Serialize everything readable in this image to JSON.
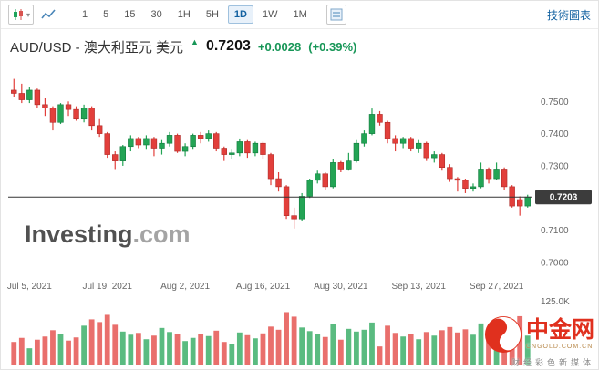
{
  "toolbar": {
    "chart_type_icon": "candlestick-icon",
    "line_icon": "line-chart-icon",
    "panel_icon": "indicators-icon",
    "timeframes": [
      "1",
      "5",
      "15",
      "30",
      "1H",
      "5H",
      "1D",
      "1W",
      "1M"
    ],
    "active_timeframe": "1D",
    "link_label": "技術圖表"
  },
  "header": {
    "title": "AUD/USD - 澳大利亞元 美元",
    "direction_icon": "up-arrow-icon",
    "price": "0.7203",
    "change": "+0.0028",
    "change_percent": "(+0.39%)"
  },
  "watermark": {
    "brand": "Investing",
    "suffix": ".com"
  },
  "logo": {
    "name": "中金网",
    "domain": "CNGOLD.COM.CN",
    "tagline": "财经彩色新媒体"
  },
  "colors": {
    "up": "#23A455",
    "up_border": "#117A3D",
    "down": "#E23F3B",
    "down_border": "#AD2B28",
    "accent_blue": "#1261A0",
    "price_line": "#333333",
    "badge_bg": "#3c3c3c",
    "badge_text": "#ffffff",
    "axis_text": "#666666",
    "logo_red": "#E0301E"
  },
  "chart_data": {
    "type": "candlestick",
    "title": "AUD/USD Daily",
    "ylim": [
      0.696,
      0.76
    ],
    "y_ticks": [
      0.75,
      0.74,
      0.73,
      0.72,
      0.71,
      0.7
    ],
    "y_tick_labels": [
      "0.7500",
      "0.7400",
      "0.7300",
      "0.7200",
      "0.7100",
      "0.7000"
    ],
    "x_tick_labels": [
      "Jul 5, 2021",
      "Jul 19, 2021",
      "Aug 2, 2021",
      "Aug 16, 2021",
      "Aug 30, 2021",
      "Sep 13, 2021",
      "Sep 27, 2021"
    ],
    "x_tick_indices": [
      2,
      12,
      22,
      32,
      42,
      52,
      62
    ],
    "current_price": 0.7203,
    "current_price_label": "0.7203",
    "volume_axis_label": "125.0K",
    "volume_max_k": 125,
    "candle_fields": [
      "date",
      "open",
      "high",
      "low",
      "close",
      "volume_k"
    ],
    "candles": [
      [
        "Jul 1, 2021",
        0.7535,
        0.757,
        0.7515,
        0.7525,
        52
      ],
      [
        "Jul 2, 2021",
        0.7525,
        0.7555,
        0.7495,
        0.7505,
        61
      ],
      [
        "Jul 5, 2021",
        0.7505,
        0.7545,
        0.7495,
        0.7535,
        38
      ],
      [
        "Jul 6, 2021",
        0.7535,
        0.754,
        0.748,
        0.749,
        57
      ],
      [
        "Jul 7, 2021",
        0.749,
        0.751,
        0.7455,
        0.748,
        64
      ],
      [
        "Jul 8, 2021",
        0.748,
        0.7485,
        0.741,
        0.7435,
        78
      ],
      [
        "Jul 9, 2021",
        0.7435,
        0.7495,
        0.743,
        0.749,
        70
      ],
      [
        "Jul 12, 2021",
        0.749,
        0.75,
        0.7455,
        0.7475,
        55
      ],
      [
        "Jul 13, 2021",
        0.7475,
        0.7485,
        0.744,
        0.7445,
        62
      ],
      [
        "Jul 14, 2021",
        0.7445,
        0.749,
        0.7435,
        0.748,
        88
      ],
      [
        "Jul 15, 2021",
        0.748,
        0.7485,
        0.741,
        0.7425,
        102
      ],
      [
        "Jul 16, 2021",
        0.7425,
        0.7445,
        0.739,
        0.74,
        96
      ],
      [
        "Jul 19, 2021",
        0.74,
        0.7405,
        0.7325,
        0.7335,
        112
      ],
      [
        "Jul 20, 2021",
        0.7335,
        0.7345,
        0.729,
        0.7315,
        90
      ],
      [
        "Jul 21, 2021",
        0.7315,
        0.7365,
        0.73,
        0.736,
        75
      ],
      [
        "Jul 22, 2021",
        0.736,
        0.7395,
        0.7345,
        0.7385,
        68
      ],
      [
        "Jul 23, 2021",
        0.7385,
        0.739,
        0.7355,
        0.7365,
        72
      ],
      [
        "Jul 26, 2021",
        0.7365,
        0.7395,
        0.735,
        0.7385,
        58
      ],
      [
        "Jul 27, 2021",
        0.7385,
        0.739,
        0.733,
        0.7355,
        66
      ],
      [
        "Jul 28, 2021",
        0.7355,
        0.738,
        0.7335,
        0.737,
        83
      ],
      [
        "Jul 29, 2021",
        0.737,
        0.7405,
        0.736,
        0.7395,
        74
      ],
      [
        "Jul 30, 2021",
        0.7395,
        0.74,
        0.734,
        0.7345,
        69
      ],
      [
        "Aug 2, 2021",
        0.7345,
        0.737,
        0.733,
        0.736,
        54
      ],
      [
        "Aug 3, 2021",
        0.736,
        0.74,
        0.735,
        0.7395,
        61
      ],
      [
        "Aug 4, 2021",
        0.7395,
        0.7405,
        0.737,
        0.7385,
        70
      ],
      [
        "Aug 5, 2021",
        0.7385,
        0.741,
        0.7375,
        0.74,
        65
      ],
      [
        "Aug 6, 2021",
        0.74,
        0.7405,
        0.7345,
        0.7355,
        77
      ],
      [
        "Aug 9, 2021",
        0.7355,
        0.736,
        0.7315,
        0.7335,
        52
      ],
      [
        "Aug 10, 2021",
        0.7335,
        0.735,
        0.732,
        0.734,
        48
      ],
      [
        "Aug 11, 2021",
        0.734,
        0.7385,
        0.733,
        0.7375,
        73
      ],
      [
        "Aug 12, 2021",
        0.7375,
        0.738,
        0.7325,
        0.734,
        67
      ],
      [
        "Aug 13, 2021",
        0.734,
        0.7375,
        0.733,
        0.737,
        60
      ],
      [
        "Aug 16, 2021",
        0.737,
        0.7375,
        0.732,
        0.7335,
        71
      ],
      [
        "Aug 17, 2021",
        0.7335,
        0.734,
        0.724,
        0.726,
        86
      ],
      [
        "Aug 18, 2021",
        0.726,
        0.728,
        0.722,
        0.7235,
        79
      ],
      [
        "Aug 19, 2021",
        0.7235,
        0.724,
        0.7135,
        0.7145,
        118
      ],
      [
        "Aug 20, 2021",
        0.7145,
        0.717,
        0.7105,
        0.7135,
        108
      ],
      [
        "Aug 23, 2021",
        0.7135,
        0.7215,
        0.713,
        0.7205,
        84
      ],
      [
        "Aug 24, 2021",
        0.7205,
        0.726,
        0.72,
        0.7255,
        76
      ],
      [
        "Aug 25, 2021",
        0.7255,
        0.7285,
        0.7245,
        0.7275,
        70
      ],
      [
        "Aug 26, 2021",
        0.7275,
        0.728,
        0.7225,
        0.7235,
        63
      ],
      [
        "Aug 27, 2021",
        0.7235,
        0.732,
        0.723,
        0.731,
        92
      ],
      [
        "Aug 30, 2021",
        0.731,
        0.7315,
        0.728,
        0.729,
        57
      ],
      [
        "Aug 31, 2021",
        0.729,
        0.734,
        0.7285,
        0.7315,
        81
      ],
      [
        "Sep 1, 2021",
        0.7315,
        0.738,
        0.731,
        0.737,
        75
      ],
      [
        "Sep 2, 2021",
        0.737,
        0.741,
        0.736,
        0.74,
        79
      ],
      [
        "Sep 3, 2021",
        0.74,
        0.7478,
        0.7395,
        0.746,
        95
      ],
      [
        "Sep 6, 2021",
        0.746,
        0.747,
        0.7425,
        0.7435,
        42
      ],
      [
        "Sep 7, 2021",
        0.7435,
        0.744,
        0.737,
        0.7385,
        88
      ],
      [
        "Sep 8, 2021",
        0.7385,
        0.7395,
        0.7345,
        0.737,
        72
      ],
      [
        "Sep 9, 2021",
        0.737,
        0.739,
        0.7355,
        0.7385,
        64
      ],
      [
        "Sep 10, 2021",
        0.7385,
        0.739,
        0.7345,
        0.7355,
        69
      ],
      [
        "Sep 13, 2021",
        0.7355,
        0.738,
        0.734,
        0.737,
        58
      ],
      [
        "Sep 14, 2021",
        0.737,
        0.7375,
        0.7315,
        0.7325,
        74
      ],
      [
        "Sep 15, 2021",
        0.7325,
        0.7345,
        0.731,
        0.7335,
        66
      ],
      [
        "Sep 16, 2021",
        0.7335,
        0.734,
        0.7285,
        0.7295,
        78
      ],
      [
        "Sep 17, 2021",
        0.7295,
        0.7305,
        0.725,
        0.726,
        85
      ],
      [
        "Sep 20, 2021",
        0.726,
        0.7265,
        0.722,
        0.7255,
        73
      ],
      [
        "Sep 21, 2021",
        0.7255,
        0.726,
        0.7215,
        0.723,
        80
      ],
      [
        "Sep 22, 2021",
        0.723,
        0.7245,
        0.722,
        0.7235,
        68
      ],
      [
        "Sep 23, 2021",
        0.7235,
        0.731,
        0.723,
        0.729,
        93
      ],
      [
        "Sep 24, 2021",
        0.729,
        0.7295,
        0.7245,
        0.726,
        62
      ],
      [
        "Sep 27, 2021",
        0.726,
        0.731,
        0.7255,
        0.729,
        55
      ],
      [
        "Sep 28, 2021",
        0.729,
        0.7295,
        0.7225,
        0.7235,
        77
      ],
      [
        "Sep 29, 2021",
        0.7235,
        0.724,
        0.717,
        0.7175,
        101
      ],
      [
        "Sep 30, 2021",
        0.7195,
        0.7205,
        0.7145,
        0.7175,
        109
      ],
      [
        "Oct 1, 2021",
        0.7175,
        0.721,
        0.717,
        0.7203,
        66
      ]
    ]
  }
}
